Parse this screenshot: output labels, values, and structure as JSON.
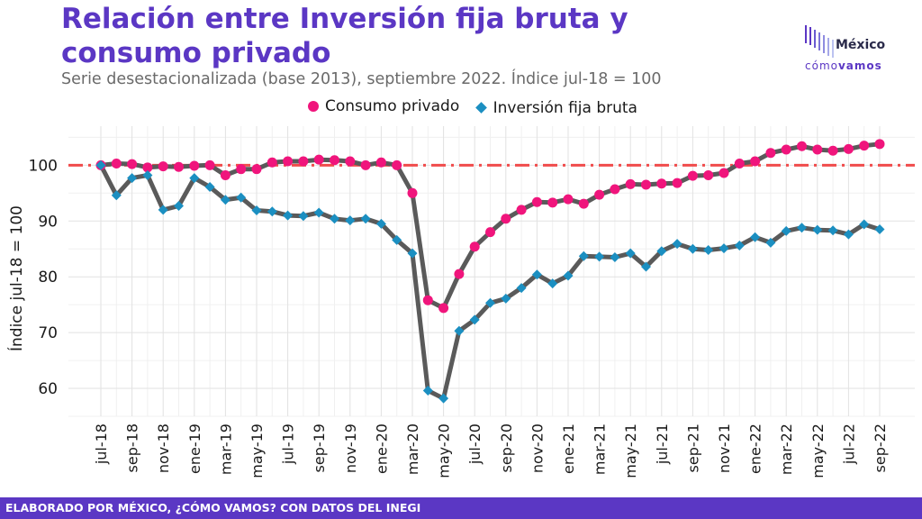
{
  "title": "Relación entre Inversión fija bruta y consumo privado",
  "subtitle": "Serie desestacionalizada (base 2013), septiembre 2022. Índice jul-18 = 100",
  "logo": {
    "line1": "México",
    "line2a": "cómo",
    "line2b": "vamos"
  },
  "footer": "ELABORADO POR MÉXICO, ¿CÓMO VAMOS? CON DATOS DEL INEGI",
  "colors": {
    "title": "#5b37c4",
    "consumo": "#f0157c",
    "inversion": "#1b8fc1",
    "line": "#5a5a5a",
    "reference": "#f04c4c",
    "footer_bg": "#5b37c4"
  },
  "chart_data": {
    "type": "line",
    "ylabel": "Índice jul-18 = 100",
    "xlabel": "",
    "ylim": [
      55,
      107
    ],
    "yticks": [
      60,
      70,
      80,
      90,
      100
    ],
    "grid": true,
    "legend_position": "top",
    "reference_line": {
      "y": 100,
      "style": "dash-dot"
    },
    "x": [
      "jul-18",
      "ago-18",
      "sep-18",
      "oct-18",
      "nov-18",
      "dic-18",
      "ene-19",
      "feb-19",
      "mar-19",
      "abr-19",
      "may-19",
      "jun-19",
      "jul-19",
      "ago-19",
      "sep-19",
      "oct-19",
      "nov-19",
      "dic-19",
      "ene-20",
      "feb-20",
      "mar-20",
      "abr-20",
      "may-20",
      "jun-20",
      "jul-20",
      "ago-20",
      "sep-20",
      "oct-20",
      "nov-20",
      "dic-20",
      "ene-21",
      "feb-21",
      "mar-21",
      "abr-21",
      "may-21",
      "jun-21",
      "jul-21",
      "ago-21",
      "sep-21",
      "oct-21",
      "nov-21",
      "dic-21",
      "ene-22",
      "feb-22",
      "mar-22",
      "abr-22",
      "may-22",
      "jun-22",
      "jul-22",
      "ago-22",
      "sep-22"
    ],
    "tick_labels": [
      "jul-18",
      "sep-18",
      "nov-18",
      "ene-19",
      "mar-19",
      "may-19",
      "jul-19",
      "sep-19",
      "nov-19",
      "ene-20",
      "mar-20",
      "may-20",
      "jul-20",
      "sep-20",
      "nov-20",
      "ene-21",
      "mar-21",
      "may-21",
      "jul-21",
      "sep-21",
      "nov-21",
      "ene-22",
      "mar-22",
      "may-22",
      "jul-22",
      "sep-22"
    ],
    "series": [
      {
        "name": "Consumo privado",
        "marker": "circle",
        "values": [
          100,
          100.3,
          100.2,
          99.6,
          99.8,
          99.7,
          99.9,
          100.0,
          98.2,
          99.3,
          99.3,
          100.5,
          100.7,
          100.7,
          101.0,
          100.9,
          100.7,
          100.0,
          100.5,
          100.0,
          95.0,
          75.8,
          74.4,
          80.5,
          85.4,
          88.0,
          90.4,
          92.0,
          93.4,
          93.3,
          93.9,
          93.1,
          94.7,
          95.7,
          96.6,
          96.5,
          96.7,
          96.8,
          98.1,
          98.2,
          98.6,
          100.3,
          100.7,
          102.2,
          102.8,
          103.4,
          102.8,
          102.6,
          102.9,
          103.5,
          103.8
        ]
      },
      {
        "name": "Inversión fija bruta",
        "marker": "diamond",
        "values": [
          100,
          94.6,
          97.7,
          98.2,
          92.0,
          92.7,
          97.7,
          96.1,
          93.8,
          94.2,
          91.9,
          91.7,
          91.0,
          90.9,
          91.5,
          90.4,
          90.1,
          90.4,
          89.5,
          86.6,
          84.2,
          59.6,
          58.2,
          70.3,
          72.3,
          75.3,
          76.1,
          78.0,
          80.4,
          78.8,
          80.2,
          83.7,
          83.6,
          83.5,
          84.2,
          81.8,
          84.6,
          85.9,
          85.0,
          84.8,
          85.1,
          85.6,
          87.1,
          86.1,
          88.2,
          88.8,
          88.4,
          88.3,
          87.6,
          89.4,
          88.5
        ]
      }
    ]
  }
}
